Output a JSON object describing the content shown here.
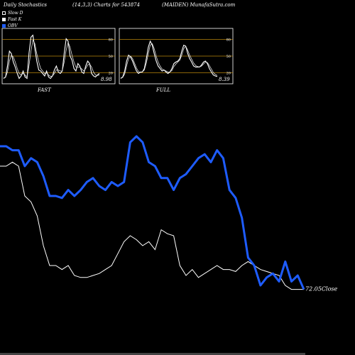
{
  "header": {
    "left": "Daily Stochastics",
    "center": "(14,3,3) Charts for 543874",
    "right": "(MAIDEN) MunafaSutra.com"
  },
  "legend": [
    {
      "label": "Slow  D",
      "color": "#000000",
      "border": "#ffffff"
    },
    {
      "label": "Fast K",
      "color": "#ffffff",
      "border": "#ffffff"
    },
    {
      "label": "OBV",
      "color": "#1e5cff",
      "border": "#1e5cff"
    }
  ],
  "colors": {
    "background": "#000000",
    "price_line": "#ffffff",
    "obv_line": "#1e5cff",
    "level_line": "#b8860b",
    "panel_border": "#ffffff"
  },
  "chart_data": [
    {
      "type": "line",
      "title": "FAST",
      "value_label": "8.98",
      "ylim": [
        0,
        100
      ],
      "levels": [
        80,
        50,
        20
      ],
      "series": [
        {
          "name": "Fast K",
          "values": [
            5,
            8,
            30,
            60,
            55,
            38,
            28,
            15,
            5,
            10,
            20,
            8,
            5,
            55,
            88,
            92,
            65,
            40,
            22,
            20,
            15,
            10,
            20,
            8,
            5,
            10,
            22,
            30,
            18,
            15,
            20,
            55,
            85,
            80,
            50,
            42,
            25,
            20,
            35,
            30,
            18,
            15,
            30,
            40,
            35,
            15,
            10,
            8,
            12,
            15
          ]
        },
        {
          "name": "Slow D",
          "values": [
            6,
            7,
            18,
            40,
            52,
            48,
            38,
            25,
            15,
            12,
            15,
            12,
            8,
            30,
            60,
            82,
            75,
            55,
            38,
            25,
            20,
            15,
            16,
            12,
            9,
            10,
            15,
            22,
            22,
            20,
            20,
            38,
            62,
            78,
            68,
            52,
            38,
            28,
            28,
            28,
            24,
            20,
            25,
            32,
            34,
            28,
            18,
            12,
            11,
            12
          ]
        }
      ]
    },
    {
      "type": "line",
      "title": "FULL",
      "value_label": "8.39",
      "ylim": [
        0,
        100
      ],
      "levels": [
        80,
        50,
        20
      ],
      "series": [
        {
          "name": "Fast K",
          "values": [
            5,
            8,
            20,
            40,
            52,
            48,
            40,
            30,
            20,
            15,
            18,
            18,
            25,
            45,
            68,
            80,
            72,
            55,
            40,
            30,
            25,
            20,
            22,
            18,
            15,
            18,
            25,
            35,
            38,
            40,
            45,
            60,
            72,
            70,
            55,
            45,
            38,
            30,
            28,
            28,
            28,
            32,
            38,
            40,
            35,
            25,
            18,
            12,
            10,
            9
          ]
        },
        {
          "name": "Slow D",
          "values": [
            6,
            7,
            14,
            30,
            45,
            50,
            45,
            36,
            26,
            19,
            17,
            18,
            22,
            36,
            55,
            72,
            75,
            65,
            50,
            38,
            30,
            24,
            22,
            20,
            18,
            18,
            21,
            29,
            34,
            38,
            42,
            52,
            65,
            70,
            62,
            52,
            44,
            36,
            31,
            29,
            28,
            30,
            34,
            38,
            37,
            31,
            24,
            17,
            13,
            11
          ]
        }
      ]
    },
    {
      "type": "line",
      "title": "",
      "value_label": "72.05",
      "value_suffix": "Close",
      "ylim": [
        0,
        100
      ],
      "series": [
        {
          "name": "Close",
          "values": [
            70,
            70,
            72,
            70,
            55,
            52,
            45,
            30,
            20,
            20,
            18,
            20,
            15,
            14,
            14,
            15,
            16,
            18,
            20,
            26,
            32,
            35,
            33,
            30,
            32,
            28,
            38,
            36,
            35,
            20,
            15,
            18,
            14,
            16,
            18,
            20,
            18,
            18,
            17,
            20,
            22,
            20,
            18,
            17,
            16,
            15,
            10,
            8,
            8,
            8
          ]
        },
        {
          "name": "OBV",
          "values": [
            80,
            80,
            78,
            78,
            70,
            74,
            72,
            65,
            55,
            55,
            54,
            58,
            55,
            58,
            62,
            64,
            60,
            58,
            62,
            60,
            62,
            82,
            85,
            82,
            72,
            70,
            64,
            64,
            58,
            64,
            66,
            70,
            74,
            76,
            72,
            78,
            74,
            58,
            54,
            44,
            24,
            20,
            10,
            14,
            16,
            12,
            22,
            12,
            15,
            8
          ]
        }
      ]
    }
  ]
}
